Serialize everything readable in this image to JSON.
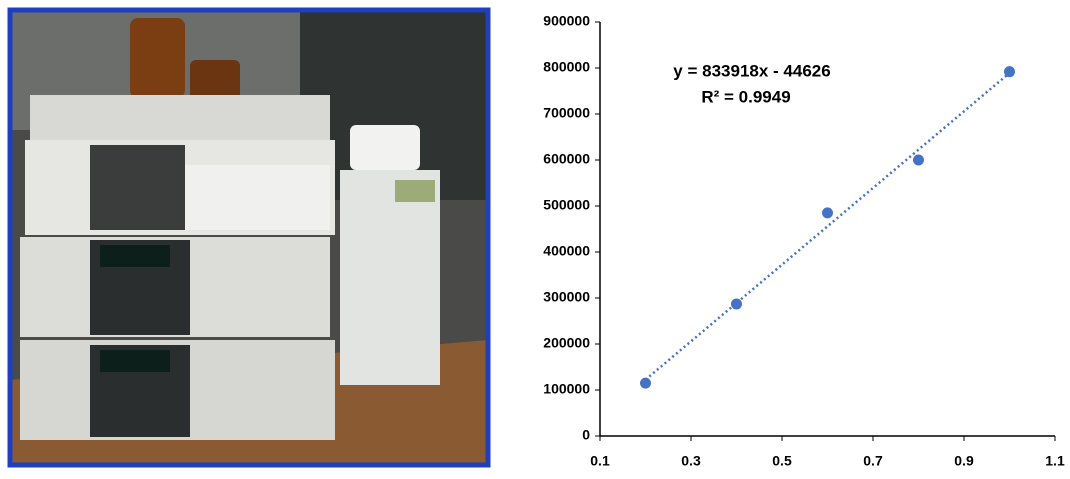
{
  "chart_data": {
    "type": "scatter",
    "annotations": [
      "y = 833918x - 44626",
      "R² = 0.9949"
    ],
    "series": [
      {
        "color": "#4472c4",
        "x": [
          0.2,
          0.4,
          0.6,
          0.8,
          1.0
        ],
        "values": [
          115000,
          287000,
          485000,
          600000,
          792000
        ]
      }
    ],
    "trendline": "linear",
    "xlim": [
      0.1,
      1.1
    ],
    "xticks": [
      0.1,
      0.3,
      0.5,
      0.7,
      0.9,
      1.1
    ],
    "ylim": [
      0,
      900000
    ],
    "yticks": [
      0,
      100000,
      200000,
      300000,
      400000,
      500000,
      600000,
      700000,
      800000,
      900000
    ]
  }
}
